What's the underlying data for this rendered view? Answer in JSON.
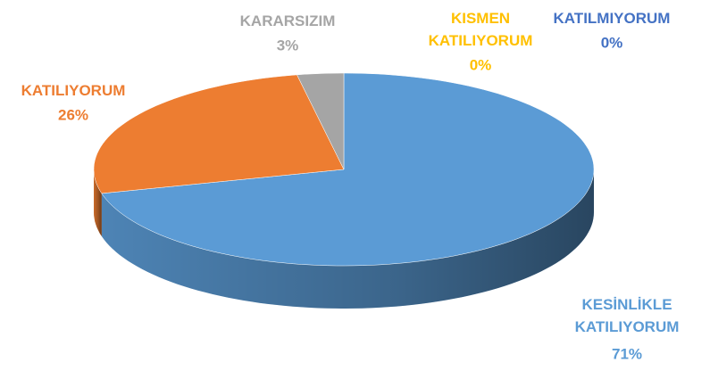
{
  "chart_data": {
    "type": "pie3d",
    "categories": [
      "KESİNLİKLE KATILIYORUM",
      "KATILIYORUM",
      "KARARSIZIM",
      "KISMEN KATILIYORUM",
      "KATILMIYORUM"
    ],
    "values": [
      71,
      26,
      3,
      0,
      0
    ],
    "value_labels": [
      "71%",
      "26%",
      "3%",
      "0%",
      "0%"
    ],
    "colors": [
      "#5b9bd5",
      "#ed7d31",
      "#a5a5a5",
      "#ffc000",
      "#4472c4"
    ]
  }
}
